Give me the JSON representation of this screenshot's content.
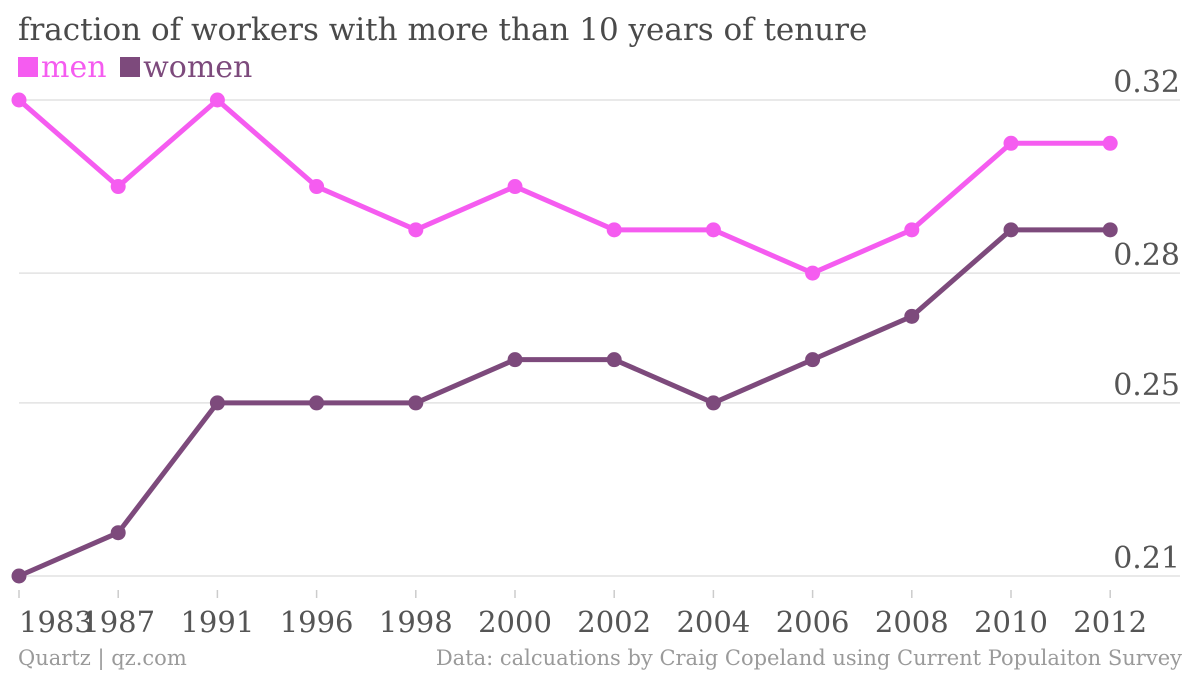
{
  "chart_data": {
    "type": "line",
    "title": "fraction of workers with more than 10 years of tenure",
    "categories": [
      "1983",
      "1987",
      "1991",
      "1996",
      "1998",
      "2000",
      "2002",
      "2004",
      "2006",
      "2008",
      "2010",
      "2012"
    ],
    "series": [
      {
        "name": "men",
        "color": "#f55cf0",
        "values": [
          0.32,
          0.3,
          0.32,
          0.3,
          0.29,
          0.3,
          0.29,
          0.29,
          0.28,
          0.29,
          0.31,
          0.31
        ]
      },
      {
        "name": "women",
        "color": "#7d4a7c",
        "values": [
          0.21,
          0.22,
          0.25,
          0.25,
          0.25,
          0.26,
          0.26,
          0.25,
          0.26,
          0.27,
          0.29,
          0.29
        ]
      }
    ],
    "y_ticks": [
      "0.21",
      "0.25",
      "0.28",
      "0.32"
    ],
    "ylim": [
      0.21,
      0.32
    ],
    "grid": true,
    "legend_position": "top-left",
    "y_axis_side": "right"
  },
  "footer": {
    "source_left": "Quartz | qz.com",
    "source_right": "Data: calcuations by Craig Copeland using Current Populaiton Survey"
  }
}
